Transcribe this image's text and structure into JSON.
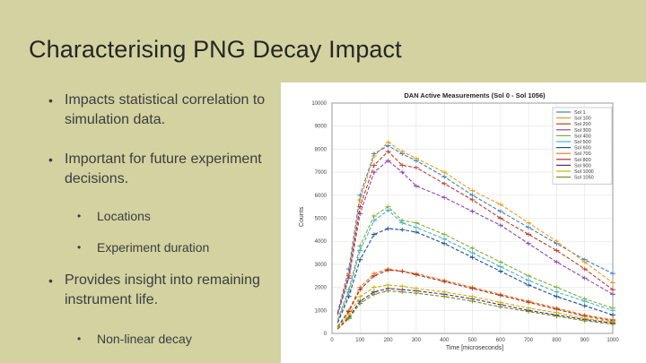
{
  "slide": {
    "title": "Characterising PNG Decay Impact",
    "bullets": [
      {
        "text": "Impacts statistical correlation to simulation data.",
        "level": 1
      },
      {
        "text": "Important for future experiment decisions.",
        "level": 1
      },
      {
        "text": "Locations",
        "level": 2
      },
      {
        "text": "Experiment duration",
        "level": 2
      },
      {
        "text": "Provides insight into remaining instrument life.",
        "level": 1
      },
      {
        "text": "Non-linear decay",
        "level": 2
      }
    ],
    "colors": {
      "background": "#d3d2a1",
      "title": "#262626",
      "text": "#3d3d3d"
    }
  },
  "chart_data": {
    "type": "line",
    "title": "DAN Active Measurements (Sol 0 - Sol 1056)",
    "xlabel": "Time [microseconds]",
    "ylabel": "Counts",
    "xlim": [
      0,
      1000
    ],
    "ylim": [
      0,
      10000
    ],
    "xticks": [
      0,
      100,
      200,
      300,
      400,
      500,
      600,
      700,
      800,
      900,
      1000
    ],
    "yticks": [
      0,
      1000,
      2000,
      3000,
      4000,
      5000,
      6000,
      7000,
      8000,
      9000,
      10000
    ],
    "ytick_labels": [
      "0",
      "1000",
      "2000",
      "3000",
      "4000",
      "5000",
      "6000",
      "7000",
      "8000",
      "9000",
      "10000"
    ],
    "legend": "top-right",
    "x": [
      20,
      60,
      100,
      150,
      200,
      250,
      300,
      400,
      500,
      600,
      700,
      800,
      900,
      1000
    ],
    "series": [
      {
        "name": "Sol 1",
        "color": "#3f7fbf",
        "values": [
          900,
          2800,
          6000,
          7800,
          8150,
          7800,
          7500,
          6800,
          6000,
          5300,
          4600,
          3900,
          3200,
          2600
        ]
      },
      {
        "name": "Sol 100",
        "color": "#e0a020",
        "values": [
          800,
          2600,
          5800,
          7700,
          8300,
          7900,
          7600,
          7000,
          6200,
          5600,
          4800,
          4000,
          3100,
          2200
        ]
      },
      {
        "name": "Sol 200",
        "color": "#c0392b",
        "values": [
          850,
          2500,
          5500,
          7300,
          7900,
          7300,
          7200,
          6500,
          5800,
          5000,
          4300,
          3600,
          2800,
          1900
        ]
      },
      {
        "name": "Sol 300",
        "color": "#8e44ad",
        "values": [
          800,
          2400,
          5200,
          7000,
          7500,
          7000,
          6400,
          5900,
          5300,
          4700,
          3900,
          3100,
          2400,
          1700
        ]
      },
      {
        "name": "Sol 400",
        "color": "#7fae3a",
        "values": [
          600,
          1900,
          3800,
          5100,
          5500,
          4900,
          4800,
          4300,
          3700,
          3100,
          2500,
          2000,
          1500,
          1100
        ]
      },
      {
        "name": "Sol 500",
        "color": "#48b0d0",
        "values": [
          500,
          1800,
          3600,
          4900,
          5350,
          4800,
          4600,
          4100,
          3500,
          2900,
          2300,
          1800,
          1400,
          1000
        ]
      },
      {
        "name": "Sol 600",
        "color": "#1f4e8c",
        "values": [
          450,
          1600,
          3200,
          4300,
          4550,
          4500,
          4400,
          3900,
          3300,
          2700,
          2100,
          1600,
          1200,
          800
        ]
      },
      {
        "name": "Sol 700",
        "color": "#e67e22",
        "values": [
          300,
          1000,
          2000,
          2600,
          2800,
          2700,
          2600,
          2300,
          2000,
          1700,
          1400,
          1100,
          800,
          600
        ]
      },
      {
        "name": "Sol 800",
        "color": "#a93226",
        "values": [
          280,
          950,
          1900,
          2500,
          2750,
          2700,
          2550,
          2250,
          1950,
          1650,
          1350,
          1050,
          750,
          550
        ]
      },
      {
        "name": "Sol 900",
        "color": "#5b2c6f",
        "values": [
          200,
          700,
          1400,
          1800,
          1950,
          1900,
          1850,
          1700,
          1500,
          1250,
          1000,
          800,
          600,
          450
        ]
      },
      {
        "name": "Sol 1000",
        "color": "#c8b400",
        "values": [
          250,
          800,
          1600,
          2000,
          2100,
          2050,
          1950,
          1800,
          1600,
          1350,
          1100,
          900,
          650,
          500
        ]
      },
      {
        "name": "Sol 1050",
        "color": "#6b8e23",
        "values": [
          180,
          650,
          1300,
          1700,
          1850,
          1800,
          1750,
          1600,
          1400,
          1150,
          950,
          750,
          550,
          400
        ]
      }
    ]
  }
}
